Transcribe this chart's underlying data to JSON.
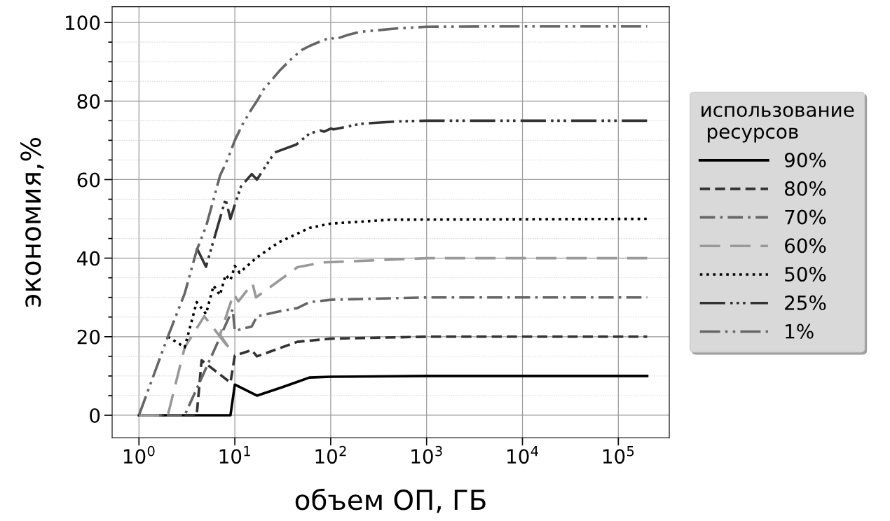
{
  "chart_data": {
    "type": "line",
    "xlabel": "объем ОП, ГБ",
    "ylabel": "экономия,%",
    "legend_title": "использование\n ресурсов",
    "log": "x",
    "grid": true,
    "legend": "right",
    "xlim": [
      0.525,
      340000
    ],
    "ylim": [
      -5.7,
      104
    ],
    "xticks": [
      {
        "value": 1,
        "label": "10$^{0}$"
      },
      {
        "value": 10,
        "label": "10$^{1}$"
      },
      {
        "value": 100,
        "label": "10$^{2}$"
      },
      {
        "value": 1000,
        "label": "10$^{3}$"
      },
      {
        "value": 10000,
        "label": "10$^{4}$"
      },
      {
        "value": 100000,
        "label": "10$^{5}$"
      }
    ],
    "yticks": [
      0,
      {
        "value": 5,
        "label": null
      },
      {
        "value": 10,
        "label": null
      },
      {
        "value": 15,
        "label": null
      },
      20,
      {
        "value": 25,
        "label": null
      },
      {
        "value": 30,
        "label": null
      },
      {
        "value": 35,
        "label": null
      },
      40,
      {
        "value": 45,
        "label": null
      },
      {
        "value": 50,
        "label": null
      },
      {
        "value": 55,
        "label": null
      },
      60,
      {
        "value": 65,
        "label": null
      },
      {
        "value": 70,
        "label": null
      },
      {
        "value": 75,
        "label": null
      },
      80,
      {
        "value": 85,
        "label": null
      },
      {
        "value": 90,
        "label": null
      },
      {
        "value": 95,
        "label": null
      },
      100
    ],
    "series": [
      {
        "name": "90%",
        "color": "#000000",
        "line_style": "solid",
        "x": [
          1,
          9,
          10,
          17,
          30,
          45,
          60,
          100,
          1000,
          200000
        ],
        "values": [
          0,
          0,
          7.8,
          5,
          7,
          8.5,
          9.6,
          9.8,
          10,
          10
        ]
      },
      {
        "name": "80%",
        "color": "#333333",
        "line_style": "dashed",
        "x": [
          1,
          4,
          4.5,
          9,
          10,
          15,
          17,
          45,
          100,
          1000,
          200000
        ],
        "values": [
          0,
          0,
          14,
          8.3,
          15.2,
          16.6,
          15,
          18.7,
          19.5,
          20,
          20
        ]
      },
      {
        "name": "70%",
        "color": "#666666",
        "line_style": "dashdot",
        "x": [
          1,
          3,
          9.5,
          10,
          15,
          17,
          30,
          45,
          60,
          100,
          1000,
          200000
        ],
        "values": [
          0,
          0,
          27,
          21.5,
          22.6,
          25.2,
          26.5,
          27.3,
          28.8,
          29.4,
          30,
          30
        ]
      },
      {
        "name": "60%",
        "color": "#999999",
        "line_style": "longdash",
        "x": [
          1,
          2,
          3,
          4.8,
          9,
          7,
          9.7,
          10.9,
          15.3,
          16.6,
          45,
          82,
          1000,
          200000
        ],
        "values": [
          0,
          0,
          17.3,
          25.2,
          16.6,
          20.5,
          30.9,
          29,
          33.6,
          30,
          37.7,
          38.9,
          40,
          40
        ]
      },
      {
        "name": "50%",
        "color": "#000000",
        "line_style": "dotted",
        "x": [
          2,
          3,
          4,
          5,
          6,
          7,
          8,
          9,
          10,
          11.2,
          17,
          28.6,
          60,
          100,
          430,
          200000
        ],
        "values": [
          20,
          17.3,
          28.8,
          25.8,
          33,
          30.6,
          35.7,
          34.4,
          38,
          36.3,
          40.2,
          44,
          47.7,
          48.8,
          49.8,
          50
        ]
      },
      {
        "name": "25%",
        "color": "#333333",
        "line_style": "longdashdots",
        "x": [
          4,
          5,
          8,
          9,
          10,
          11.6,
          15,
          17,
          26,
          43.6,
          60,
          78,
          85,
          100,
          107,
          205,
          500,
          1000,
          200000
        ],
        "values": [
          42.6,
          37.8,
          55,
          50,
          53.6,
          58.3,
          61.4,
          60,
          66.9,
          68.9,
          71.7,
          72.5,
          72.2,
          73,
          72.8,
          74.2,
          74.8,
          75,
          75
        ]
      },
      {
        "name": "1%",
        "color": "#666666",
        "line_style": "dashdotdot",
        "x": [
          1,
          2,
          3,
          4,
          5,
          6,
          7,
          8,
          9,
          10,
          12,
          15,
          17,
          20,
          30,
          40,
          50,
          60,
          80,
          100,
          110,
          150,
          200,
          500,
          1000,
          5000,
          200000
        ],
        "values": [
          0,
          20,
          31,
          42,
          48,
          55,
          61,
          64,
          67,
          70,
          74,
          78,
          80,
          83,
          88,
          91,
          93,
          94,
          95.3,
          96.2,
          95.7,
          96.8,
          97.6,
          98.5,
          98.9,
          99,
          99
        ]
      }
    ]
  }
}
